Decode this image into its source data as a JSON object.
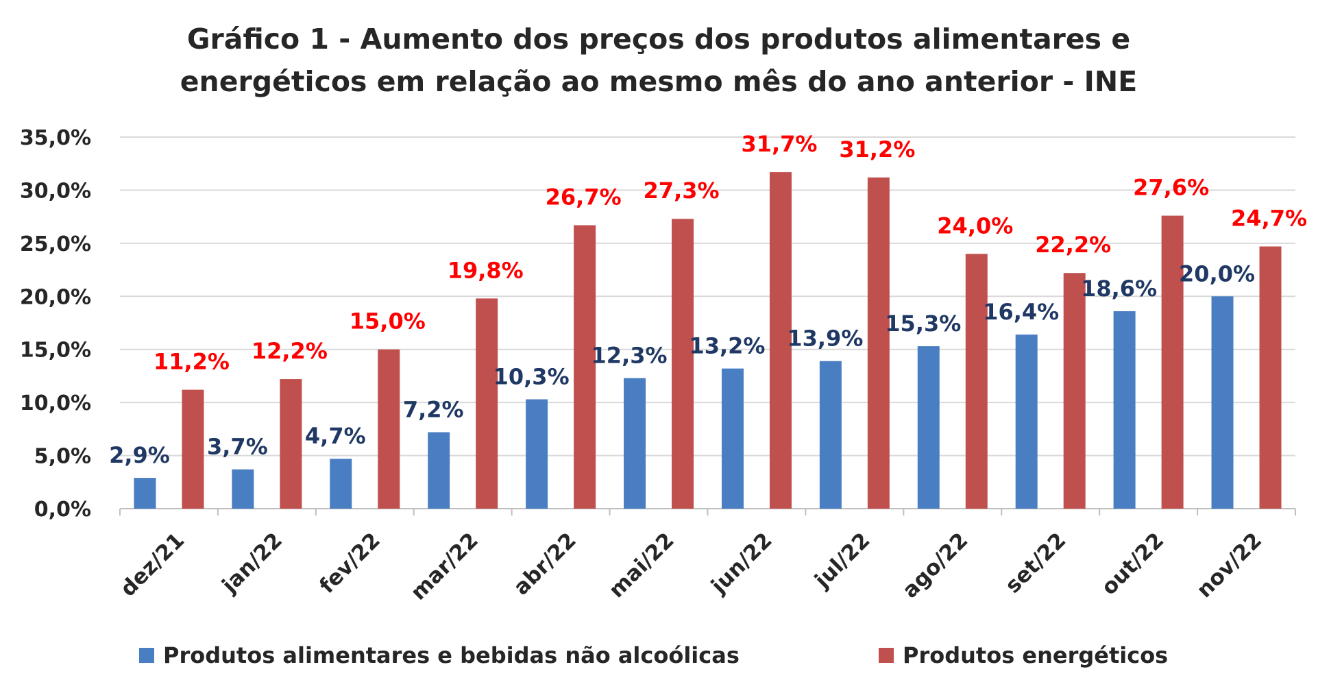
{
  "chart_data": {
    "type": "bar",
    "title_line1": "Gráfico 1 - Aumento dos preços dos produtos alimentares e",
    "title_line2": "energéticos em relação ao mesmo mês do ano anterior - INE",
    "categories": [
      "dez/21",
      "jan/22",
      "fev/22",
      "mar/22",
      "abr/22",
      "mai/22",
      "jun/22",
      "jul/22",
      "ago/22",
      "set/22",
      "out/22",
      "nov/22"
    ],
    "series": [
      {
        "name": "Produtos alimentares e bebidas não alcoólicas",
        "color": "#4A7EC2",
        "label_color": "#1F3864",
        "values": [
          2.9,
          3.7,
          4.7,
          7.2,
          10.3,
          12.3,
          13.2,
          13.9,
          15.3,
          16.4,
          18.6,
          20.0
        ],
        "labels": [
          "2,9%",
          "3,7%",
          "4,7%",
          "7,2%",
          "10,3%",
          "12,3%",
          "13,2%",
          "13,9%",
          "15,3%",
          "16,4%",
          "18,6%",
          "20,0%"
        ]
      },
      {
        "name": "Produtos energéticos",
        "color": "#C0504D",
        "label_color": "#FF0000",
        "values": [
          11.2,
          12.2,
          15.0,
          19.8,
          26.7,
          27.3,
          31.7,
          31.2,
          24.0,
          22.2,
          27.6,
          24.7
        ],
        "labels": [
          "11,2%",
          "12,2%",
          "15,0%",
          "19,8%",
          "26,7%",
          "27,3%",
          "31,7%",
          "31,2%",
          "24,0%",
          "22,2%",
          "27,6%",
          "24,7%"
        ]
      }
    ],
    "ylim": [
      0,
      35
    ],
    "yticks": [
      0,
      5,
      10,
      15,
      20,
      25,
      30,
      35
    ],
    "ytick_labels": [
      "0,0%",
      "5,0%",
      "10,0%",
      "15,0%",
      "20,0%",
      "25,0%",
      "30,0%",
      "35,0%"
    ],
    "grid": true,
    "legend_position": "bottom"
  }
}
